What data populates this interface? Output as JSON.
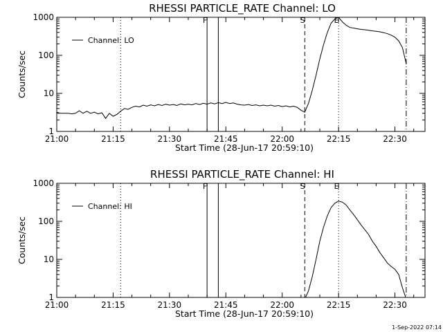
{
  "chart_data": [
    {
      "type": "line",
      "title": "RHESSI PARTICLE_RATE Channel: LO",
      "xlabel": "Start Time (28-Jun-17 20:59:10)",
      "ylabel": "Counts/sec",
      "yscale": "log",
      "xlim": [
        "21:00",
        "22:38"
      ],
      "ylim": [
        1,
        1000
      ],
      "x_ticks": [
        "21:00",
        "21:15",
        "21:30",
        "21:45",
        "22:00",
        "22:15",
        "22:30"
      ],
      "y_ticks": [
        "1",
        "10",
        "100",
        "1000"
      ],
      "legend": {
        "label": "Channel: LO",
        "placement": "top-left"
      },
      "markers": [
        {
          "label": "",
          "time": "21:17",
          "style": "dotted"
        },
        {
          "label": "F",
          "time": "21:40",
          "style": "solid"
        },
        {
          "label": "",
          "time": "21:43",
          "style": "solid"
        },
        {
          "label": "S",
          "time": "22:06",
          "style": "dashed"
        },
        {
          "label": "E",
          "time": "22:15",
          "style": "dotted"
        },
        {
          "label": "",
          "time": "22:33",
          "style": "dashdot"
        }
      ],
      "series": [
        {
          "name": "Channel: LO",
          "points": [
            [
              "21:00",
              3.2
            ],
            [
              "21:01",
              3.0
            ],
            [
              "21:02",
              3.0
            ],
            [
              "21:03",
              3.0
            ],
            [
              "21:04",
              2.9
            ],
            [
              "21:05",
              3.0
            ],
            [
              "21:06",
              3.5
            ],
            [
              "21:07",
              3.0
            ],
            [
              "21:08",
              3.4
            ],
            [
              "21:09",
              3.0
            ],
            [
              "21:10",
              3.2
            ],
            [
              "21:11",
              2.9
            ],
            [
              "21:12",
              3.1
            ],
            [
              "21:13",
              2.2
            ],
            [
              "21:14",
              3.0
            ],
            [
              "21:15",
              2.5
            ],
            [
              "21:16",
              2.8
            ],
            [
              "21:17",
              3.4
            ],
            [
              "21:18",
              4.0
            ],
            [
              "21:19",
              3.8
            ],
            [
              "21:20",
              4.3
            ],
            [
              "21:21",
              4.6
            ],
            [
              "21:22",
              4.4
            ],
            [
              "21:23",
              4.9
            ],
            [
              "21:24",
              4.6
            ],
            [
              "21:25",
              5.0
            ],
            [
              "21:26",
              4.7
            ],
            [
              "21:27",
              5.1
            ],
            [
              "21:28",
              4.8
            ],
            [
              "21:29",
              5.2
            ],
            [
              "21:30",
              4.9
            ],
            [
              "21:31",
              5.1
            ],
            [
              "21:32",
              4.8
            ],
            [
              "21:33",
              5.3
            ],
            [
              "21:34",
              5.0
            ],
            [
              "21:35",
              5.2
            ],
            [
              "21:36",
              5.0
            ],
            [
              "21:37",
              5.4
            ],
            [
              "21:38",
              5.1
            ],
            [
              "21:39",
              5.5
            ],
            [
              "21:40",
              5.2
            ],
            [
              "21:41",
              5.6
            ],
            [
              "21:42",
              5.3
            ],
            [
              "21:43",
              5.7
            ],
            [
              "21:44",
              5.4
            ],
            [
              "21:45",
              5.8
            ],
            [
              "21:46",
              5.4
            ],
            [
              "21:47",
              5.6
            ],
            [
              "21:48",
              5.2
            ],
            [
              "21:49",
              5.0
            ],
            [
              "21:50",
              4.9
            ],
            [
              "21:51",
              5.1
            ],
            [
              "21:52",
              4.8
            ],
            [
              "21:53",
              5.0
            ],
            [
              "21:54",
              4.7
            ],
            [
              "21:55",
              4.9
            ],
            [
              "21:56",
              4.7
            ],
            [
              "21:57",
              4.9
            ],
            [
              "21:58",
              4.6
            ],
            [
              "21:59",
              4.8
            ],
            [
              "22:00",
              4.5
            ],
            [
              "22:01",
              4.7
            ],
            [
              "22:02",
              4.4
            ],
            [
              "22:03",
              4.6
            ],
            [
              "22:04",
              4.3
            ],
            [
              "22:05",
              3.6
            ],
            [
              "22:06",
              3.2
            ],
            [
              "22:07",
              5.5
            ],
            [
              "22:08",
              12
            ],
            [
              "22:09",
              30
            ],
            [
              "22:10",
              80
            ],
            [
              "22:11",
              190
            ],
            [
              "22:12",
              400
            ],
            [
              "22:13",
              700
            ],
            [
              "22:14",
              900
            ],
            [
              "22:15",
              1000
            ],
            [
              "22:16",
              760
            ],
            [
              "22:17",
              620
            ],
            [
              "22:18",
              540
            ],
            [
              "22:19",
              520
            ],
            [
              "22:20",
              500
            ],
            [
              "22:21",
              480
            ],
            [
              "22:22",
              470
            ],
            [
              "22:23",
              455
            ],
            [
              "22:24",
              440
            ],
            [
              "22:25",
              430
            ],
            [
              "22:26",
              415
            ],
            [
              "22:27",
              395
            ],
            [
              "22:28",
              370
            ],
            [
              "22:29",
              340
            ],
            [
              "22:30",
              300
            ],
            [
              "22:31",
              240
            ],
            [
              "22:32",
              160
            ],
            [
              "22:33",
              60
            ]
          ]
        }
      ]
    },
    {
      "type": "line",
      "title": "RHESSI PARTICLE_RATE Channel: HI",
      "xlabel": "Start Time (28-Jun-17 20:59:10)",
      "ylabel": "Counts/sec",
      "yscale": "log",
      "xlim": [
        "21:00",
        "22:38"
      ],
      "ylim": [
        1,
        1000
      ],
      "x_ticks": [
        "21:00",
        "21:15",
        "21:30",
        "21:45",
        "22:00",
        "22:15",
        "22:30"
      ],
      "y_ticks": [
        "1",
        "10",
        "100",
        "1000"
      ],
      "legend": {
        "label": "Channel: HI",
        "placement": "top-left"
      },
      "markers": [
        {
          "label": "",
          "time": "21:17",
          "style": "dotted"
        },
        {
          "label": "F",
          "time": "21:40",
          "style": "solid"
        },
        {
          "label": "",
          "time": "21:43",
          "style": "solid"
        },
        {
          "label": "S",
          "time": "22:06",
          "style": "dashed"
        },
        {
          "label": "E",
          "time": "22:15",
          "style": "dotted"
        },
        {
          "label": "",
          "time": "22:33",
          "style": "dashdot"
        }
      ],
      "series": [
        {
          "name": "Channel: HI",
          "points": [
            [
              "22:06",
              0.9
            ],
            [
              "22:07",
              1.5
            ],
            [
              "22:08",
              3.5
            ],
            [
              "22:09",
              10
            ],
            [
              "22:10",
              30
            ],
            [
              "22:11",
              70
            ],
            [
              "22:12",
              140
            ],
            [
              "22:13",
              230
            ],
            [
              "22:14",
              300
            ],
            [
              "22:15",
              340
            ],
            [
              "22:16",
              320
            ],
            [
              "22:17",
              270
            ],
            [
              "22:18",
              200
            ],
            [
              "22:19",
              150
            ],
            [
              "22:20",
              110
            ],
            [
              "22:21",
              80
            ],
            [
              "22:22",
              60
            ],
            [
              "22:23",
              45
            ],
            [
              "22:24",
              30
            ],
            [
              "22:25",
              22
            ],
            [
              "22:26",
              15
            ],
            [
              "22:27",
              11
            ],
            [
              "22:28",
              8
            ],
            [
              "22:29",
              6.5
            ],
            [
              "22:30",
              5.5
            ],
            [
              "22:31",
              4.0
            ],
            [
              "22:32",
              1.8
            ],
            [
              "22:33",
              0.9
            ]
          ]
        }
      ]
    }
  ],
  "footer": {
    "timestamp": "1-Sep-2022 07:14"
  }
}
